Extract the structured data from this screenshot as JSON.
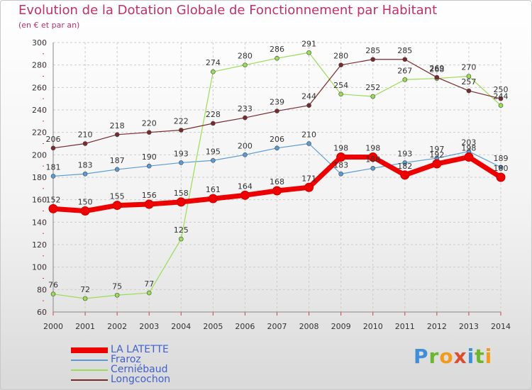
{
  "chart_data": {
    "type": "line",
    "title": "Evolution de la Dotation Globale de Fonctionnement par Habitant",
    "subtitle": "(en € et par an)",
    "xlabel": "",
    "ylabel": "",
    "x": [
      "2000",
      "2001",
      "2002",
      "2003",
      "2004",
      "2005",
      "2006",
      "2007",
      "2008",
      "2009",
      "2010",
      "2011",
      "2012",
      "2013",
      "2014"
    ],
    "ylim": [
      60,
      300
    ],
    "yticks": [
      60,
      80,
      100,
      120,
      140,
      160,
      180,
      200,
      220,
      240,
      260,
      280,
      300
    ],
    "grid": true,
    "legend_position": "bottom-left",
    "series": [
      {
        "name": "LA LATETTE",
        "color": "#ee0000",
        "values": [
          152,
          150,
          155,
          156,
          158,
          161,
          164,
          168,
          171,
          198,
          198,
          182,
          192,
          198,
          180
        ]
      },
      {
        "name": "Fraroz",
        "color": "#5b9bd5",
        "values": [
          181,
          183,
          187,
          190,
          193,
          195,
          200,
          206,
          210,
          183,
          188,
          193,
          197,
          203,
          189
        ]
      },
      {
        "name": "Cerniébaud",
        "color": "#99dd55",
        "values": [
          76,
          72,
          75,
          77,
          125,
          274,
          280,
          286,
          291,
          254,
          252,
          267,
          268,
          270,
          244
        ]
      },
      {
        "name": "Longcochon",
        "color": "#7a2a2a",
        "values": [
          206,
          210,
          218,
          220,
          222,
          228,
          233,
          239,
          244,
          280,
          285,
          285,
          269,
          257,
          250
        ]
      }
    ]
  },
  "brand": {
    "letters": [
      "P",
      "r",
      "o",
      "x",
      "i",
      "t",
      "i"
    ],
    "colors": [
      "#3f8fd8",
      "#6cb62f",
      "#f29b1b",
      "#e04b2f",
      "#3f8fd8",
      "#6cb62f",
      "#f29b1b"
    ]
  }
}
